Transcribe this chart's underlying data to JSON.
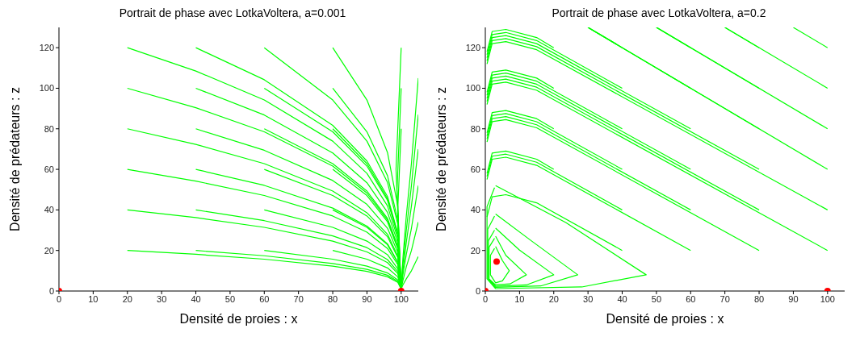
{
  "chart_data": [
    {
      "type": "line",
      "title": "Portrait de phase avec LotkaVoltera, a=0.001",
      "xlabel": "Densité de proies : x",
      "ylabel": "Densité de prédateurs : z",
      "xlim": [
        0,
        105
      ],
      "ylim": [
        0,
        130
      ],
      "xticks": [
        0,
        10,
        20,
        30,
        40,
        50,
        60,
        70,
        80,
        90,
        100
      ],
      "yticks": [
        0,
        20,
        40,
        60,
        80,
        100,
        120
      ],
      "series": [
        {
          "color": "#00ff00",
          "x": [
            20,
            40,
            60,
            80,
            90,
            96,
            99,
            100
          ],
          "values": [
            20,
            18.1,
            15.7,
            12.3,
            9.7,
            7,
            4.3,
            1
          ]
        },
        {
          "color": "#00ff00",
          "x": [
            20,
            40,
            60,
            80,
            90,
            96,
            99,
            100
          ],
          "values": [
            40,
            36.2,
            31.4,
            24.6,
            19.3,
            14,
            8.6,
            1
          ]
        },
        {
          "color": "#00ff00",
          "x": [
            20,
            40,
            60,
            80,
            90,
            96,
            99,
            100
          ],
          "values": [
            60,
            54.2,
            47.1,
            37,
            29,
            21,
            13,
            1
          ]
        },
        {
          "color": "#00ff00",
          "x": [
            20,
            40,
            60,
            80,
            90,
            96,
            99,
            100
          ],
          "values": [
            80,
            72.3,
            62.8,
            49.3,
            38.6,
            28,
            17.3,
            1
          ]
        },
        {
          "color": "#00ff00",
          "x": [
            20,
            40,
            60,
            80,
            90,
            96,
            99,
            100
          ],
          "values": [
            100,
            90.4,
            78.5,
            61.6,
            48.3,
            35,
            21.6,
            1
          ]
        },
        {
          "color": "#00ff00",
          "x": [
            20,
            40,
            60,
            80,
            90,
            96,
            99,
            100
          ],
          "values": [
            120,
            108.5,
            94.2,
            73.9,
            58,
            42,
            25.9,
            1
          ]
        },
        {
          "color": "#00ff00",
          "x": [
            40,
            60,
            80,
            90,
            96,
            99,
            100
          ],
          "values": [
            20,
            17.4,
            13.6,
            10.7,
            7.8,
            4.8,
            1
          ]
        },
        {
          "color": "#00ff00",
          "x": [
            40,
            60,
            80,
            90,
            96,
            99,
            100
          ],
          "values": [
            40,
            34.7,
            27.2,
            21.4,
            15.5,
            9.6,
            1
          ]
        },
        {
          "color": "#00ff00",
          "x": [
            40,
            60,
            80,
            90,
            96,
            99,
            100
          ],
          "values": [
            60,
            52.1,
            40.9,
            32,
            23.3,
            14.3,
            1
          ]
        },
        {
          "color": "#00ff00",
          "x": [
            40,
            60,
            80,
            90,
            96,
            99,
            100
          ],
          "values": [
            80,
            69.4,
            54.5,
            42.7,
            31,
            19.1,
            1
          ]
        },
        {
          "color": "#00ff00",
          "x": [
            40,
            60,
            80,
            90,
            96,
            99,
            100
          ],
          "values": [
            100,
            86.8,
            68.1,
            53.4,
            38.8,
            23.9,
            1
          ]
        },
        {
          "color": "#00ff00",
          "x": [
            40,
            60,
            80,
            90,
            96,
            99,
            100
          ],
          "values": [
            120,
            104.2,
            81.7,
            64.1,
            46.6,
            28.7,
            1
          ]
        },
        {
          "color": "#00ff00",
          "x": [
            60,
            80,
            90,
            96,
            99,
            100
          ],
          "values": [
            20,
            15.7,
            12.3,
            8.9,
            5.5,
            1
          ]
        },
        {
          "color": "#00ff00",
          "x": [
            60,
            80,
            90,
            96,
            99,
            100
          ],
          "values": [
            40,
            31.4,
            24.6,
            17.9,
            11,
            1
          ]
        },
        {
          "color": "#00ff00",
          "x": [
            60,
            80,
            90,
            96,
            99,
            100
          ],
          "values": [
            60,
            47.1,
            37,
            26.8,
            16.5,
            1
          ]
        },
        {
          "color": "#00ff00",
          "x": [
            60,
            80,
            90,
            96,
            99,
            100
          ],
          "values": [
            80,
            62.8,
            49.3,
            35.8,
            22,
            1
          ]
        },
        {
          "color": "#00ff00",
          "x": [
            60,
            80,
            90,
            96,
            99,
            100
          ],
          "values": [
            100,
            78.5,
            61.6,
            44.7,
            27.5,
            1
          ]
        },
        {
          "color": "#00ff00",
          "x": [
            60,
            80,
            90,
            96,
            99,
            100
          ],
          "values": [
            120,
            94.2,
            73.9,
            53.6,
            33,
            1
          ]
        },
        {
          "color": "#00ff00",
          "x": [
            80,
            90,
            96,
            99,
            100
          ],
          "values": [
            20,
            15.7,
            11.4,
            7,
            1
          ]
        },
        {
          "color": "#00ff00",
          "x": [
            80,
            90,
            96,
            99,
            100
          ],
          "values": [
            40,
            31.4,
            22.8,
            14,
            1
          ]
        },
        {
          "color": "#00ff00",
          "x": [
            80,
            90,
            96,
            99,
            100
          ],
          "values": [
            60,
            47.1,
            34.1,
            21,
            1
          ]
        },
        {
          "color": "#00ff00",
          "x": [
            80,
            90,
            96,
            99,
            100
          ],
          "values": [
            80,
            62.8,
            45.5,
            28,
            1
          ]
        },
        {
          "color": "#00ff00",
          "x": [
            80,
            90,
            96,
            99,
            100
          ],
          "values": [
            100,
            78.5,
            56.9,
            35,
            1
          ]
        },
        {
          "color": "#00ff00",
          "x": [
            80,
            90,
            96,
            99,
            100
          ],
          "values": [
            120,
            94.2,
            68.3,
            42,
            1
          ]
        },
        {
          "color": "#00ff00",
          "x": [
            100,
            98.5,
            99.5,
            100
          ],
          "values": [
            120,
            60,
            18,
            1
          ]
        },
        {
          "color": "#00ff00",
          "x": [
            100,
            98.8,
            99.6,
            100
          ],
          "values": [
            100,
            50,
            15,
            1
          ]
        },
        {
          "color": "#00ff00",
          "x": [
            100,
            99,
            99.7,
            100
          ],
          "values": [
            80,
            40,
            12,
            1
          ]
        },
        {
          "color": "#00ff00",
          "x": [
            105,
            103,
            101.5,
            100.5,
            100
          ],
          "values": [
            105,
            63,
            37,
            16,
            1
          ]
        },
        {
          "color": "#00ff00",
          "x": [
            105,
            103,
            101.5,
            100.5,
            100
          ],
          "values": [
            87,
            52,
            30,
            13,
            1
          ]
        },
        {
          "color": "#00ff00",
          "x": [
            105,
            103,
            101.5,
            100.5,
            100
          ],
          "values": [
            70,
            42,
            24,
            10,
            1
          ]
        },
        {
          "color": "#00ff00",
          "x": [
            105,
            103,
            101.5,
            100.5,
            100
          ],
          "values": [
            52,
            31,
            18,
            8,
            1
          ]
        },
        {
          "color": "#00ff00",
          "x": [
            105,
            103,
            101.5,
            100.5,
            100
          ],
          "values": [
            34,
            20,
            12,
            5,
            1
          ]
        },
        {
          "color": "#00ff00",
          "x": [
            105,
            103,
            101.5,
            100.5,
            100
          ],
          "values": [
            17,
            10,
            6,
            3,
            1
          ]
        },
        {
          "type": "scatter",
          "color": "#ff0000",
          "x": [
            0,
            100
          ],
          "values": [
            0,
            0
          ]
        }
      ]
    },
    {
      "type": "line",
      "title": "Portrait de phase avec LotkaVoltera, a=0.2",
      "xlabel": "Densité de proies : x",
      "ylabel": "Densité de prédateurs : z",
      "xlim": [
        0,
        105
      ],
      "ylim": [
        0,
        130
      ],
      "xticks": [
        0,
        10,
        20,
        30,
        40,
        50,
        60,
        70,
        80,
        90,
        100
      ],
      "yticks": [
        0,
        20,
        40,
        60,
        80,
        100,
        120
      ],
      "series": [
        {
          "color": "#00ff00",
          "x": [
            3,
            5,
            7,
            5,
            3,
            1.5,
            1.5,
            2.7
          ],
          "values": [
            22,
            15,
            10,
            5,
            4,
            8,
            17.6,
            21
          ]
        },
        {
          "color": "#00ff00",
          "x": [
            3,
            6,
            12,
            7.2,
            3,
            1.1,
            1.1,
            2.7
          ],
          "values": [
            27,
            17.6,
            8,
            3.5,
            3,
            6,
            21.6,
            26
          ]
        },
        {
          "color": "#00ff00",
          "x": [
            3,
            10,
            20,
            12,
            3,
            0.9,
            0.9,
            2.7
          ],
          "values": [
            31,
            20.2,
            8,
            3,
            2.3,
            6,
            24.8,
            30
          ]
        },
        {
          "color": "#00ff00",
          "x": [
            3,
            13.5,
            27,
            16.2,
            3,
            0.7,
            0.7,
            2.7
          ],
          "values": [
            38,
            24.7,
            8,
            2.5,
            1.8,
            6,
            30.4,
            37
          ]
        },
        {
          "color": "#00ff00",
          "x": [
            3,
            23.5,
            47,
            28.2,
            3,
            0.5,
            0.5,
            2.7
          ],
          "values": [
            52,
            33.8,
            8,
            2,
            1.2,
            6,
            41.6,
            51
          ]
        },
        {
          "color": "#00ff00",
          "x": [
            40,
            15,
            6,
            2,
            0.5
          ],
          "values": [
            20,
            43.5,
            47.5,
            46.5,
            36.5
          ]
        },
        {
          "color": "#00ff00",
          "x": [
            60,
            15,
            6,
            2,
            0.5
          ],
          "values": [
            20,
            62,
            66,
            65,
            55
          ]
        },
        {
          "color": "#00ff00",
          "x": [
            20,
            15,
            6,
            2,
            0.5
          ],
          "values": [
            60,
            65,
            69,
            68,
            58
          ]
        },
        {
          "color": "#00ff00",
          "x": [
            40,
            15,
            6,
            2,
            0.5
          ],
          "values": [
            40,
            63.5,
            67.5,
            66.5,
            56.5
          ]
        },
        {
          "color": "#00ff00",
          "x": [
            80,
            15,
            6,
            2,
            0.5
          ],
          "values": [
            20,
            80.5,
            84.5,
            83.5,
            73.5
          ]
        },
        {
          "color": "#00ff00",
          "x": [
            20,
            15,
            6,
            2,
            0.5
          ],
          "values": [
            80,
            85,
            89,
            88,
            78
          ]
        },
        {
          "color": "#00ff00",
          "x": [
            40,
            15,
            6,
            2,
            0.5
          ],
          "values": [
            60,
            83.5,
            87.5,
            86.5,
            76.5
          ]
        },
        {
          "color": "#00ff00",
          "x": [
            60,
            15,
            6,
            2,
            0.5
          ],
          "values": [
            40,
            82,
            86,
            85,
            75
          ]
        },
        {
          "color": "#00ff00",
          "x": [
            100,
            15,
            6,
            2,
            0.5
          ],
          "values": [
            20,
            99,
            103,
            102,
            92
          ]
        },
        {
          "color": "#00ff00",
          "x": [
            20,
            15,
            6,
            2,
            0.5
          ],
          "values": [
            100,
            105,
            109,
            108,
            98
          ]
        },
        {
          "color": "#00ff00",
          "x": [
            40,
            15,
            6,
            2,
            0.5
          ],
          "values": [
            80,
            103.5,
            107.5,
            106.5,
            96.5
          ]
        },
        {
          "color": "#00ff00",
          "x": [
            60,
            15,
            6,
            2,
            0.5
          ],
          "values": [
            60,
            102,
            106,
            105,
            95
          ]
        },
        {
          "color": "#00ff00",
          "x": [
            80,
            15,
            6,
            2,
            0.5
          ],
          "values": [
            40,
            100.5,
            104.5,
            103.5,
            93.5
          ]
        },
        {
          "color": "#00ff00",
          "x": [
            20,
            15,
            6,
            2,
            0.5
          ],
          "values": [
            120,
            125,
            129,
            128,
            118
          ]
        },
        {
          "color": "#00ff00",
          "x": [
            40,
            15,
            6,
            2,
            0.5
          ],
          "values": [
            100,
            123.5,
            127.5,
            126.5,
            116.5
          ]
        },
        {
          "color": "#00ff00",
          "x": [
            60,
            15,
            6,
            2,
            0.5
          ],
          "values": [
            80,
            122,
            126,
            125,
            115
          ]
        },
        {
          "color": "#00ff00",
          "x": [
            80,
            15,
            6,
            2,
            0.5
          ],
          "values": [
            60,
            120.5,
            124.5,
            123.5,
            113.5
          ]
        },
        {
          "color": "#00ff00",
          "x": [
            100,
            15,
            6,
            2,
            0.5
          ],
          "values": [
            40,
            119,
            123,
            122,
            112
          ]
        },
        {
          "color": "#00ff00",
          "x": [
            40,
            30
          ],
          "values": [
            120,
            130
          ]
        },
        {
          "color": "#00ff00",
          "x": [
            60,
            30
          ],
          "values": [
            100,
            130
          ]
        },
        {
          "color": "#00ff00",
          "x": [
            60,
            50
          ],
          "values": [
            120,
            130
          ]
        },
        {
          "color": "#00ff00",
          "x": [
            80,
            30
          ],
          "values": [
            80,
            130
          ]
        },
        {
          "color": "#00ff00",
          "x": [
            80,
            50
          ],
          "values": [
            100,
            130
          ]
        },
        {
          "color": "#00ff00",
          "x": [
            80,
            70
          ],
          "values": [
            120,
            130
          ]
        },
        {
          "color": "#00ff00",
          "x": [
            100,
            30
          ],
          "values": [
            60,
            130
          ]
        },
        {
          "color": "#00ff00",
          "x": [
            100,
            50
          ],
          "values": [
            80,
            130
          ]
        },
        {
          "color": "#00ff00",
          "x": [
            100,
            70
          ],
          "values": [
            100,
            130
          ]
        },
        {
          "color": "#00ff00",
          "x": [
            100,
            90
          ],
          "values": [
            120,
            130
          ]
        },
        {
          "type": "scatter",
          "color": "#ff0000",
          "x": [
            0,
            100,
            3.3
          ],
          "values": [
            0,
            0,
            14.5
          ]
        }
      ]
    }
  ]
}
